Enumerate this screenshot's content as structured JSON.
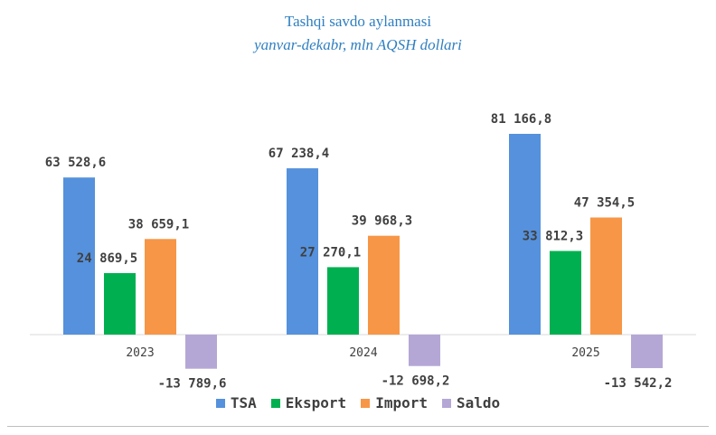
{
  "chart_data": {
    "type": "bar",
    "title": "Tashqi savdo aylanmasi",
    "subtitle": "yanvar-dekabr, mln AQSH dollari",
    "categories": [
      "2023",
      "2024",
      "2025"
    ],
    "series": [
      {
        "name": "TSA",
        "values": [
          63528.6,
          67238.4,
          81166.8
        ],
        "labels": [
          "63 528,6",
          "67 238,4",
          "81 166,8"
        ],
        "color": "#5591dc"
      },
      {
        "name": "Eksport",
        "values": [
          24869.5,
          27270.1,
          33812.3
        ],
        "labels": [
          "24 869,5",
          "27 270,1",
          "33 812,3"
        ],
        "color": "#00b050"
      },
      {
        "name": "Import",
        "values": [
          38659.1,
          39968.3,
          47354.5
        ],
        "labels": [
          "38 659,1",
          "39 968,3",
          "47 354,5"
        ],
        "color": "#f79646"
      },
      {
        "name": "Saldo",
        "values": [
          -13789.6,
          -12698.2,
          -13542.2
        ],
        "labels": [
          "-13 789,6",
          "-12 698,2",
          "-13 542,2"
        ],
        "color": "#b4a7d6"
      }
    ],
    "legend_position": "bottom",
    "grid": false,
    "ylim": [
      -15000,
      90000
    ]
  }
}
